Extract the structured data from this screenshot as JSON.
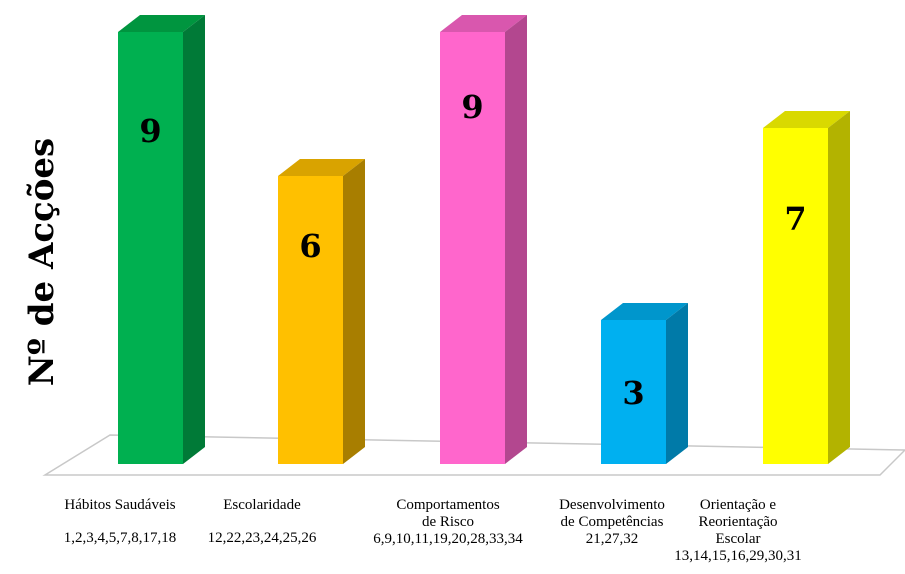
{
  "chart_data": {
    "type": "bar",
    "ylabel": "Nº de Acções",
    "ylim": [
      0,
      9
    ],
    "grid": false,
    "legend": "none",
    "categories": [
      {
        "name_lines": [
          "Hábitos Saudáveis"
        ],
        "actions": "1,2,3,4,5,7,8,17,18"
      },
      {
        "name_lines": [
          "Escolaridade"
        ],
        "actions": "12,22,23,24,25,26"
      },
      {
        "name_lines": [
          "Comportamentos",
          "de Risco"
        ],
        "actions": "6,9,10,11,19,20,28,33,34"
      },
      {
        "name_lines": [
          "Desenvolvimento",
          "de Competências"
        ],
        "actions": "21,27,32"
      },
      {
        "name_lines": [
          "Orientação e",
          "Reorientação",
          "Escolar"
        ],
        "actions": "13,14,15,16,29,30,31"
      }
    ],
    "values": [
      9,
      6,
      9,
      3,
      7
    ],
    "colors": [
      {
        "front": "#00b050",
        "side": "#007a37",
        "top": "#00953f"
      },
      {
        "front": "#ffc000",
        "side": "#a87e00",
        "top": "#d9a300"
      },
      {
        "front": "#ff66cc",
        "side": "#b3478f",
        "top": "#d957ae"
      },
      {
        "front": "#00b0f0",
        "side": "#007aa8",
        "top": "#0096cc"
      },
      {
        "front": "#ffff00",
        "side": "#b3b300",
        "top": "#d9d900"
      }
    ]
  }
}
